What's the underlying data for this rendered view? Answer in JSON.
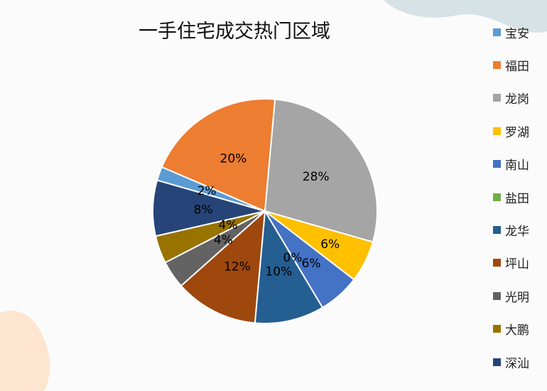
{
  "colors": {
    "background": "#fbfbfb",
    "decoration_top_right": "#d6e2e5",
    "decoration_bottom_left": "#fde5cf"
  },
  "chart_data": {
    "type": "pie",
    "title": "一手住宅成交热门区域",
    "legend_position": "right",
    "categories": [
      "宝安",
      "福田",
      "龙岗",
      "罗湖",
      "南山",
      "盐田",
      "龙华",
      "坪山",
      "光明",
      "大鹏",
      "深汕"
    ],
    "values": [
      2,
      20,
      28,
      6,
      6,
      0,
      10,
      12,
      4,
      4,
      8
    ],
    "labels": [
      "2%",
      "20%",
      "28%",
      "6%",
      "6%",
      "0%",
      "10%",
      "12%",
      "4%",
      "4%",
      "8%"
    ],
    "colors": [
      "#5b9bd5",
      "#ed7d31",
      "#a5a5a5",
      "#ffc000",
      "#4472c4",
      "#70ad47",
      "#255e91",
      "#9e480e",
      "#636363",
      "#997300",
      "#264478"
    ]
  }
}
